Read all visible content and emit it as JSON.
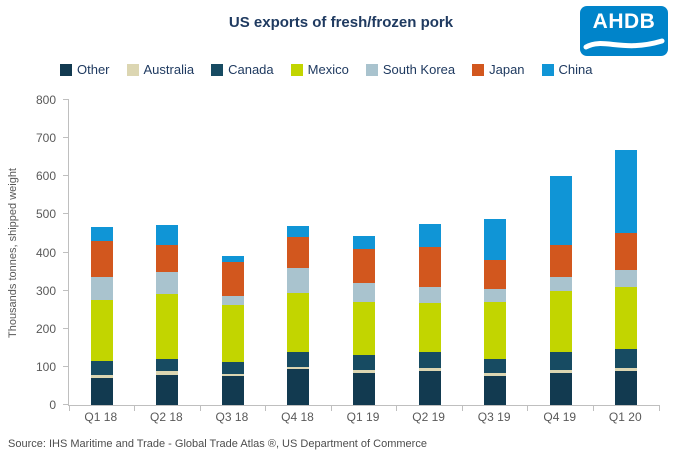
{
  "header": {
    "title": "US exports of fresh/frozen pork",
    "logo_text": "AHDB"
  },
  "source": "Source: IHS Maritime and Trade  - Global Trade Atlas ®, US Department of Commerce",
  "colors": {
    "title": "#1f3a60",
    "axis_text": "#595959",
    "axis_line": "#bfbfbf",
    "logo_bg": "#0084ca"
  },
  "chart_data": {
    "type": "bar",
    "stacked": true,
    "title": "US exports of fresh/frozen pork",
    "xlabel": "",
    "ylabel": "Thousands  tonnes, shipped weight",
    "ylim": [
      0,
      800
    ],
    "ytick_step": 100,
    "grid": false,
    "legend_position": "top",
    "categories": [
      "Q1 18",
      "Q2 18",
      "Q3 18",
      "Q4 18",
      "Q1 19",
      "Q2 19",
      "Q3 19",
      "Q4 19",
      "Q1 20"
    ],
    "series": [
      {
        "name": "Other",
        "color": "#123a50",
        "values": [
          70,
          80,
          75,
          95,
          85,
          88,
          75,
          85,
          90
        ]
      },
      {
        "name": "Australia",
        "color": "#dcd6b2",
        "values": [
          8,
          8,
          6,
          6,
          8,
          8,
          8,
          8,
          8
        ]
      },
      {
        "name": "Canada",
        "color": "#174b62",
        "values": [
          37,
          32,
          31,
          37,
          37,
          42,
          37,
          45,
          50
        ]
      },
      {
        "name": "Mexico",
        "color": "#c2d500",
        "values": [
          160,
          170,
          150,
          157,
          140,
          130,
          150,
          162,
          162
        ]
      },
      {
        "name": "South Korea",
        "color": "#a9c3ce",
        "values": [
          60,
          60,
          23,
          65,
          50,
          42,
          35,
          35,
          45
        ]
      },
      {
        "name": "Japan",
        "color": "#d2571e",
        "values": [
          95,
          70,
          90,
          80,
          90,
          105,
          75,
          85,
          95
        ]
      },
      {
        "name": "China",
        "color": "#1095d6",
        "values": [
          38,
          52,
          17,
          30,
          33,
          60,
          108,
          180,
          218
        ]
      }
    ],
    "totals": [
      468,
      472,
      392,
      470,
      443,
      475,
      488,
      600,
      668
    ]
  }
}
